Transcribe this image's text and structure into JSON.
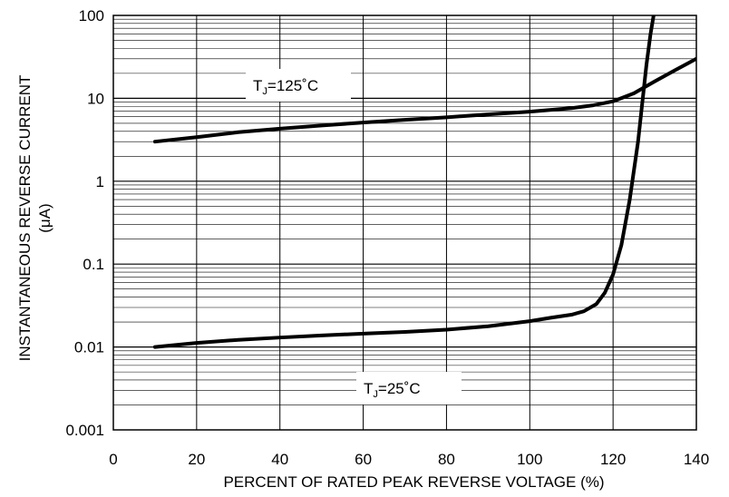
{
  "chart_data": {
    "type": "line",
    "title": "",
    "xlabel": "PERCENT OF RATED PEAK REVERSE VOLTAGE (%)",
    "ylabel_line1": "INSTANTANEOUS REVERSE CURRENT",
    "ylabel_line2": "(μA)",
    "xlim": [
      0,
      140
    ],
    "ylim": [
      0.001,
      100
    ],
    "yscale": "log",
    "grid": true,
    "x_ticks": [
      "0",
      "20",
      "40",
      "60",
      "80",
      "100",
      "120",
      "140"
    ],
    "y_ticks": [
      "0.001",
      "0.01",
      "0.1",
      "1",
      "10",
      "100"
    ],
    "series": [
      {
        "name": "TJ=125˚C",
        "label_main": "T",
        "label_sub": "J",
        "label_rest": "=125˚C",
        "x": [
          10,
          20,
          30,
          40,
          50,
          60,
          70,
          80,
          90,
          100,
          110,
          115,
          120,
          125,
          130,
          135,
          140
        ],
        "y": [
          3.0,
          3.4,
          3.9,
          4.3,
          4.7,
          5.1,
          5.5,
          5.9,
          6.4,
          6.9,
          7.6,
          8.2,
          9.2,
          11.5,
          16.0,
          22.0,
          30.0
        ]
      },
      {
        "name": "TJ=25˚C",
        "label_main": "T",
        "label_sub": "J",
        "label_rest": "=25˚C",
        "x": [
          10,
          20,
          30,
          40,
          50,
          60,
          70,
          80,
          90,
          100,
          105,
          110,
          113,
          116,
          118,
          120,
          122,
          124,
          126,
          128,
          129,
          130
        ],
        "y": [
          0.01,
          0.0112,
          0.0122,
          0.013,
          0.0138,
          0.0145,
          0.0152,
          0.0162,
          0.0178,
          0.0205,
          0.0225,
          0.0245,
          0.027,
          0.033,
          0.045,
          0.075,
          0.17,
          0.6,
          3.0,
          25.0,
          60.0,
          120.0
        ]
      }
    ]
  }
}
